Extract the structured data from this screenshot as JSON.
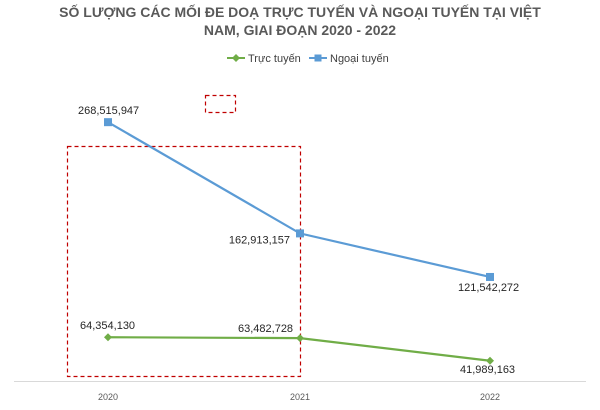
{
  "chart_data": {
    "type": "line",
    "title_lines": [
      "SỐ LƯỢNG CÁC MỐI ĐE DOẠ TRỰC TUYẾN VÀ NGOẠI TUYẾN TẠI VIỆT",
      "NAM, GIAI ĐOẠN 2020 - 2022"
    ],
    "categories": [
      "2020",
      "2021",
      "2022"
    ],
    "ylim": [
      0,
      300000000
    ],
    "grid": false,
    "legend_position": "top",
    "series": [
      {
        "name": "Trực tuyến",
        "values": [
          64354130,
          63482728,
          41989163
        ],
        "labels": [
          "64,354,130",
          "63,482,728",
          "41,989,163"
        ],
        "color": "#70ad47",
        "marker": "diamond"
      },
      {
        "name": "Ngoại tuyến",
        "values": [
          268515947,
          162913157,
          121542272
        ],
        "labels": [
          "268,515,947",
          "162,913,157",
          "121,542,272"
        ],
        "color": "#5b9bd5",
        "marker": "square"
      }
    ],
    "annotations": {
      "highlight_box_color": "#c00000",
      "highlight_box_range": [
        "2020",
        "2021"
      ]
    }
  }
}
